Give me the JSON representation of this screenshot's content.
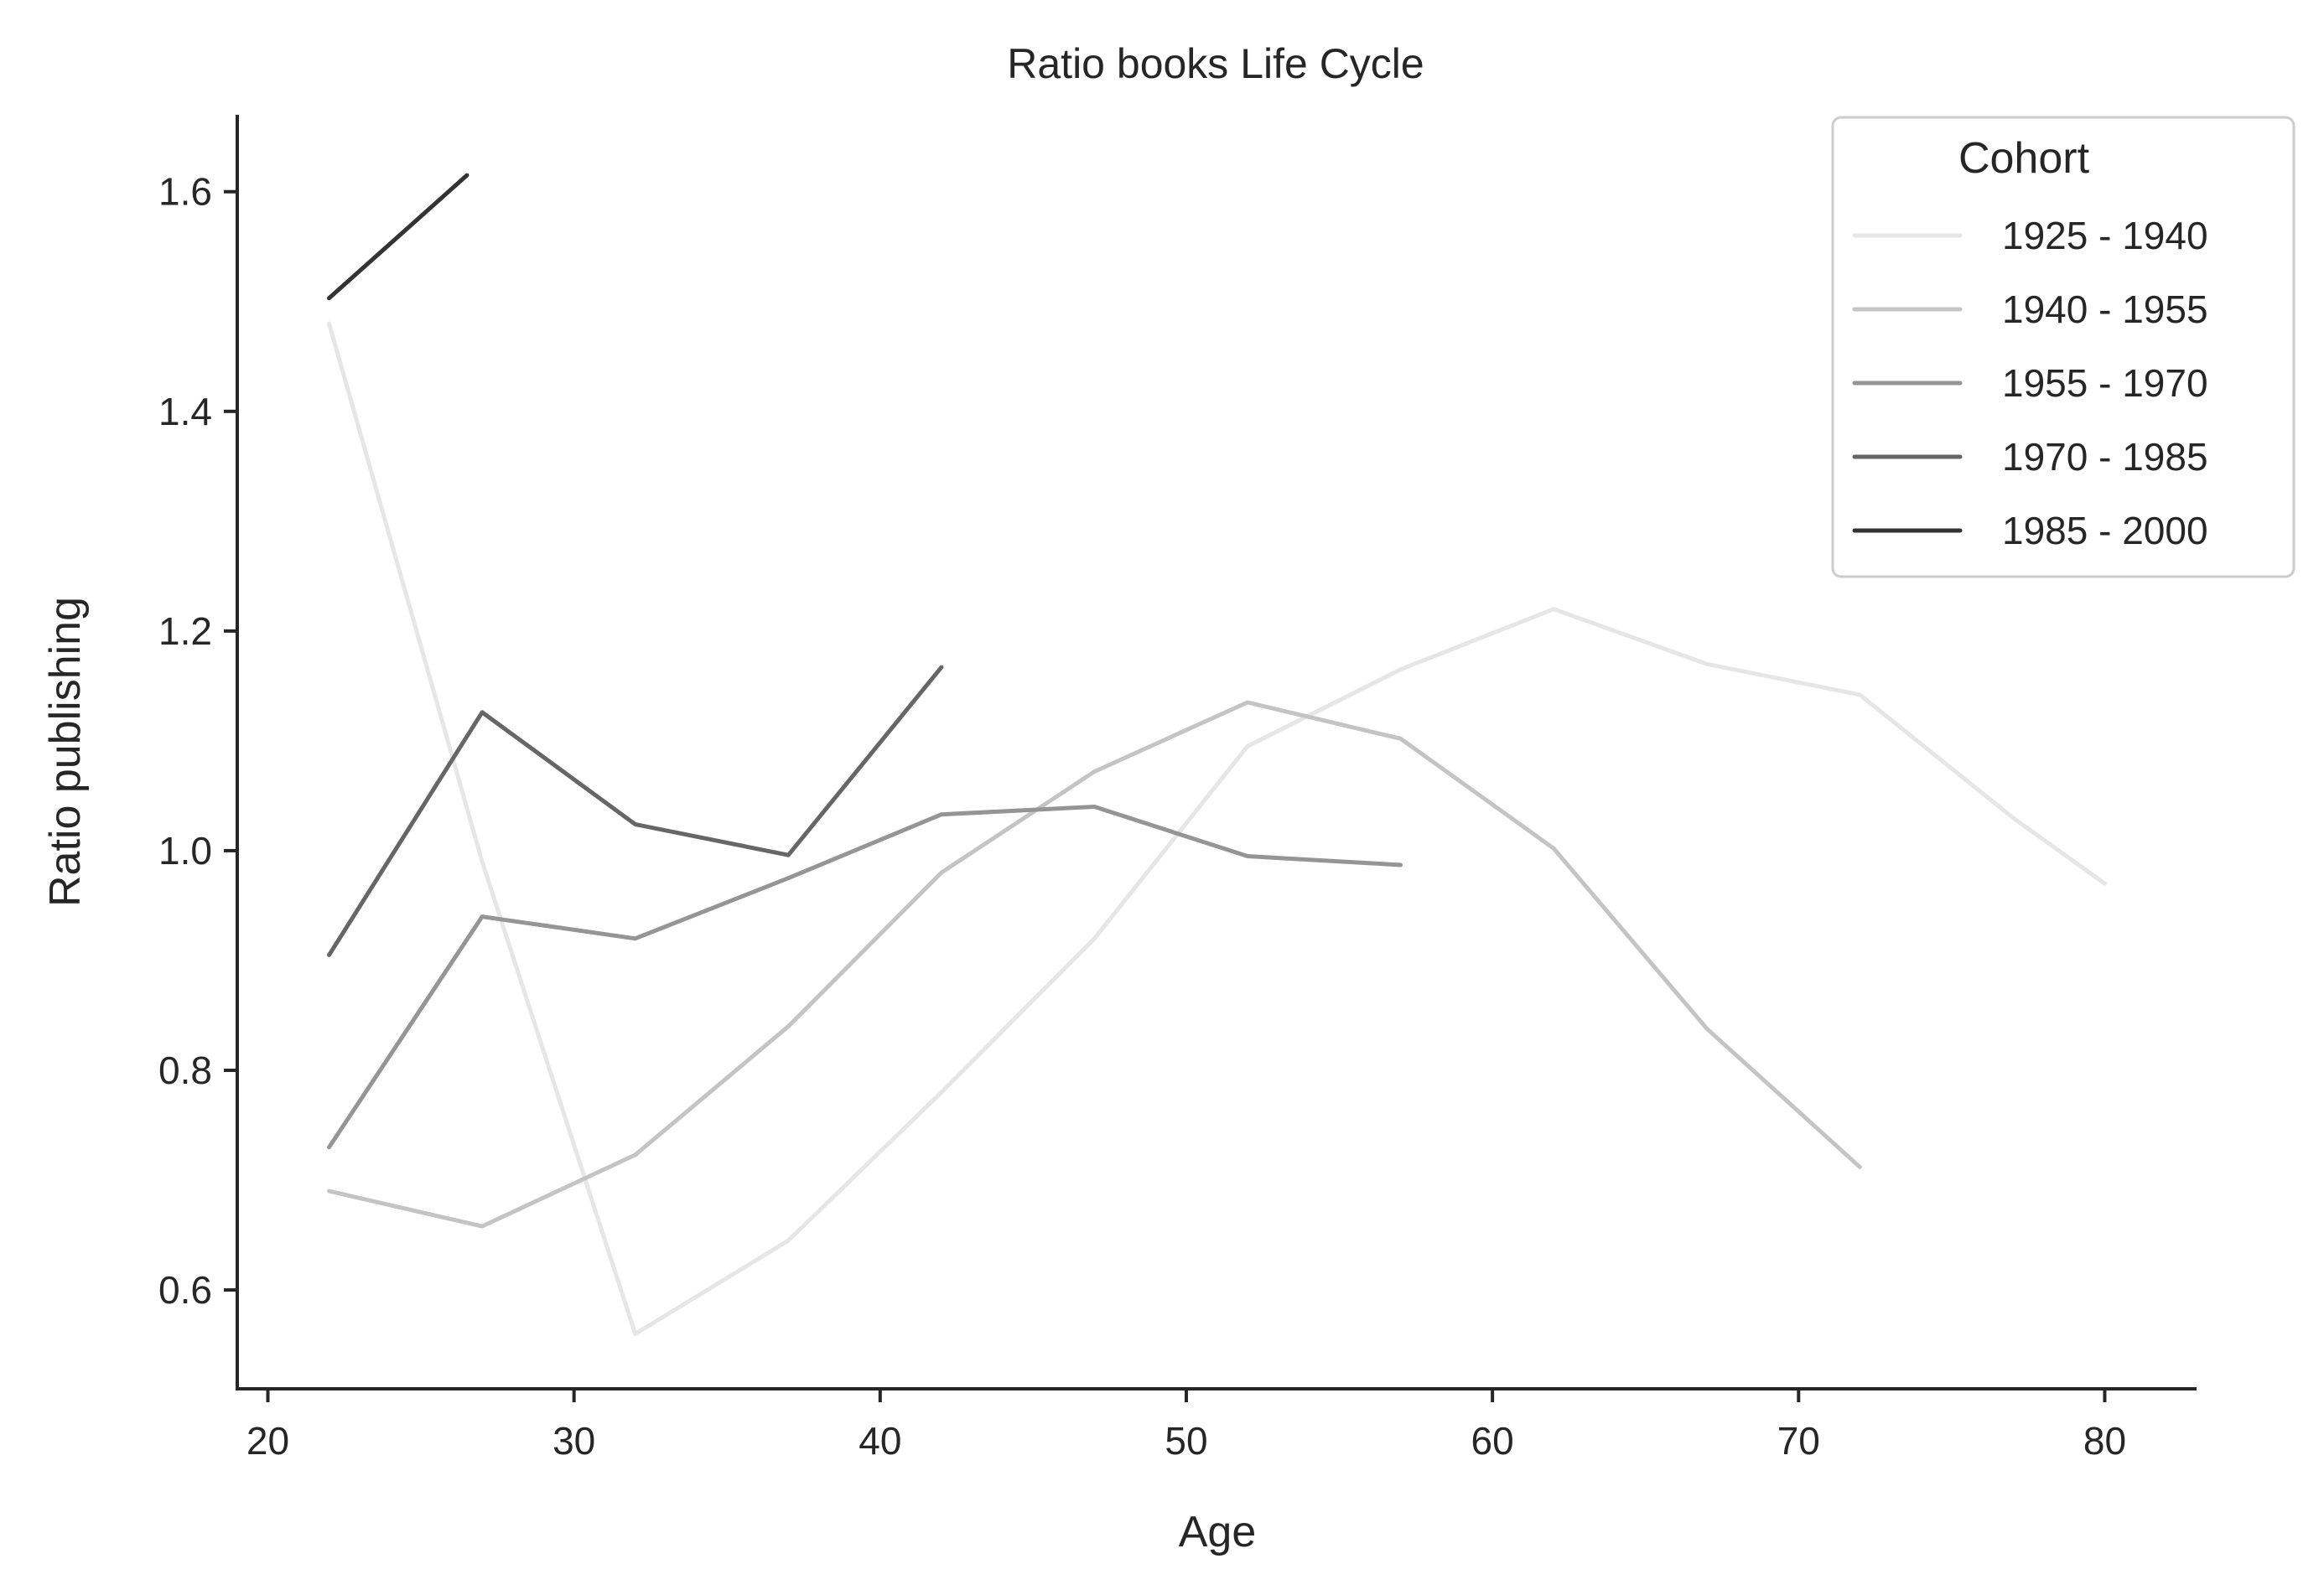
{
  "chart_data": {
    "type": "line",
    "title": "Ratio books Life Cycle",
    "xlabel": "Age",
    "ylabel": "Ratio publishing",
    "xlim": [
      19,
      83
    ],
    "ylim": [
      0.51,
      1.67
    ],
    "xticks": [
      20,
      30,
      40,
      50,
      60,
      70,
      80
    ],
    "xtick_labels": [
      "20",
      "30",
      "40",
      "50",
      "60",
      "70",
      "80"
    ],
    "yticks": [
      0.6,
      0.8,
      1.0,
      1.2,
      1.4,
      1.6
    ],
    "ytick_labels": [
      "0.6",
      "0.8",
      "1.0",
      "1.2",
      "1.4",
      "1.6"
    ],
    "grid": false,
    "legend": {
      "title": "Cohort",
      "placement": "top-right"
    },
    "series": [
      {
        "name": "1925 - 1940",
        "color": "#e6e6e6",
        "x": [
          22,
          27,
          32,
          37,
          42,
          47,
          52,
          57,
          62,
          67,
          72,
          77,
          80
        ],
        "y": [
          1.48,
          0.99,
          0.56,
          0.645,
          0.78,
          0.92,
          1.095,
          1.165,
          1.22,
          1.17,
          1.142,
          1.03,
          0.97
        ]
      },
      {
        "name": "1940 - 1955",
        "color": "#c4c4c4",
        "x": [
          22,
          27,
          32,
          37,
          42,
          47,
          52,
          57,
          62,
          67,
          72
        ],
        "y": [
          0.69,
          0.658,
          0.723,
          0.84,
          0.98,
          1.072,
          1.135,
          1.102,
          1.002,
          0.838,
          0.712
        ]
      },
      {
        "name": "1955 - 1970",
        "color": "#959595",
        "x": [
          22,
          27,
          32,
          37,
          42,
          47,
          52,
          57
        ],
        "y": [
          0.73,
          0.94,
          0.92,
          0.975,
          1.033,
          1.04,
          0.995,
          0.987
        ]
      },
      {
        "name": "1970 - 1985",
        "color": "#666666",
        "x": [
          22,
          27,
          32,
          37,
          42
        ],
        "y": [
          0.905,
          1.126,
          1.024,
          0.996,
          1.167
        ]
      },
      {
        "name": "1985 - 2000",
        "color": "#333333",
        "x": [
          22,
          26.5
        ],
        "y": [
          1.503,
          1.615
        ]
      }
    ]
  }
}
